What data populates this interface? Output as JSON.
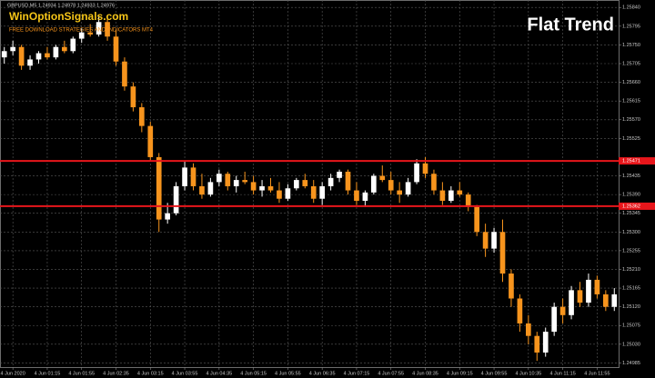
{
  "chart_data": {
    "type": "candlestick",
    "symbol_info": "GBPUSD,M5  1.24934 1.24978 1.24933 1.24976",
    "watermark": "WinOptionSignals.com",
    "watermark_subtitle": "FREE DOWNLOAD STRATEGIES AND INDICATORS MT4",
    "title": "Flat Trend",
    "up_color": "#ffffff",
    "down_color": "#f7941d",
    "level_color": "#e8161b",
    "grid": true,
    "ylim": [
      1.24975,
      1.25858
    ],
    "yticks": [
      {
        "value": 1.2584,
        "label": "1.25840"
      },
      {
        "value": 1.25795,
        "label": "1.25795"
      },
      {
        "value": 1.2575,
        "label": "1.25750"
      },
      {
        "value": 1.25705,
        "label": "1.25705"
      },
      {
        "value": 1.2566,
        "label": "1.25660"
      },
      {
        "value": 1.25615,
        "label": "1.25615"
      },
      {
        "value": 1.2557,
        "label": "1.25570"
      },
      {
        "value": 1.25525,
        "label": "1.25525"
      },
      {
        "value": 1.25435,
        "label": "1.25435"
      },
      {
        "value": 1.2539,
        "label": "1.25390"
      },
      {
        "value": 1.25345,
        "label": "1.25345"
      },
      {
        "value": 1.253,
        "label": "1.25300"
      },
      {
        "value": 1.25255,
        "label": "1.25255"
      },
      {
        "value": 1.2521,
        "label": "1.25210"
      },
      {
        "value": 1.25165,
        "label": "1.25165"
      },
      {
        "value": 1.2512,
        "label": "1.25120"
      },
      {
        "value": 1.25075,
        "label": "1.25075"
      },
      {
        "value": 1.2503,
        "label": "1.25030"
      },
      {
        "value": 1.24985,
        "label": "1.24985"
      }
    ],
    "levels": [
      1.25471,
      1.25362
    ],
    "categories": [
      null,
      "4 Jun 2020",
      null,
      null,
      null,
      "4 Jun 01:15",
      null,
      null,
      null,
      "4 Jun 01:55",
      null,
      null,
      null,
      "4 Jun 02:35",
      null,
      null,
      null,
      "4 Jun 03:15",
      null,
      null,
      null,
      "4 Jun 03:55",
      null,
      null,
      null,
      "4 Jun 04:35",
      null,
      null,
      null,
      "4 Jun 05:15",
      null,
      null,
      null,
      "4 Jun 05:55",
      null,
      null,
      null,
      "4 Jun 06:35",
      null,
      null,
      null,
      "4 Jun 07:15",
      null,
      null,
      null,
      "4 Jun 07:55",
      null,
      null,
      null,
      "4 Jun 08:35",
      null,
      null,
      null,
      "4 Jun 09:15",
      null,
      null,
      null,
      "4 Jun 09:55",
      null,
      null,
      null,
      "4 Jun 10:35",
      null,
      null,
      null,
      "4 Jun 11:15",
      null,
      null,
      null,
      "4 Jun 11:55",
      null,
      null
    ],
    "candles": [
      [
        1.2572,
        1.25745,
        1.25705,
        1.25735
      ],
      [
        1.25735,
        1.2576,
        1.25725,
        1.25745
      ],
      [
        1.25745,
        1.2575,
        1.2569,
        1.257
      ],
      [
        1.257,
        1.25725,
        1.2569,
        1.25715
      ],
      [
        1.25715,
        1.25735,
        1.25705,
        1.2573
      ],
      [
        1.2573,
        1.25745,
        1.25715,
        1.2572
      ],
      [
        1.2572,
        1.2575,
        1.25715,
        1.25745
      ],
      [
        1.25745,
        1.2576,
        1.2573,
        1.25735
      ],
      [
        1.25735,
        1.2577,
        1.2573,
        1.25765
      ],
      [
        1.25765,
        1.2579,
        1.25755,
        1.2578
      ],
      [
        1.2578,
        1.258,
        1.2577,
        1.25775
      ],
      [
        1.25775,
        1.2582,
        1.2577,
        1.25805
      ],
      [
        1.25805,
        1.25815,
        1.2576,
        1.2577
      ],
      [
        1.2577,
        1.25785,
        1.257,
        1.2571
      ],
      [
        1.2571,
        1.2572,
        1.2564,
        1.2565
      ],
      [
        1.2565,
        1.2566,
        1.2559,
        1.256
      ],
      [
        1.256,
        1.2561,
        1.2554,
        1.25555
      ],
      [
        1.25555,
        1.25565,
        1.2547,
        1.2548
      ],
      [
        1.2548,
        1.2549,
        1.253,
        1.2533
      ],
      [
        1.2533,
        1.2537,
        1.2532,
        1.25345
      ],
      [
        1.25345,
        1.2542,
        1.2534,
        1.2541
      ],
      [
        1.2541,
        1.2547,
        1.254,
        1.25455
      ],
      [
        1.25455,
        1.25465,
        1.254,
        1.2541
      ],
      [
        1.2541,
        1.2544,
        1.2538,
        1.2539
      ],
      [
        1.2539,
        1.2543,
        1.25385,
        1.2542
      ],
      [
        1.2542,
        1.2545,
        1.2541,
        1.2544
      ],
      [
        1.2544,
        1.25445,
        1.254,
        1.2541
      ],
      [
        1.2541,
        1.25435,
        1.25395,
        1.25425
      ],
      [
        1.25425,
        1.25445,
        1.25415,
        1.2542
      ],
      [
        1.2542,
        1.25435,
        1.2539,
        1.254
      ],
      [
        1.254,
        1.25425,
        1.25385,
        1.2541
      ],
      [
        1.2541,
        1.2543,
        1.25395,
        1.254
      ],
      [
        1.254,
        1.2542,
        1.2537,
        1.2538
      ],
      [
        1.2538,
        1.25415,
        1.25375,
        1.25405
      ],
      [
        1.25405,
        1.2543,
        1.254,
        1.25425
      ],
      [
        1.25425,
        1.2544,
        1.25405,
        1.2541
      ],
      [
        1.2541,
        1.25425,
        1.2537,
        1.2538
      ],
      [
        1.2538,
        1.2542,
        1.25365,
        1.2541
      ],
      [
        1.2541,
        1.2544,
        1.254,
        1.2543
      ],
      [
        1.2543,
        1.2545,
        1.2542,
        1.25445
      ],
      [
        1.25445,
        1.2545,
        1.2539,
        1.254
      ],
      [
        1.254,
        1.2542,
        1.25365,
        1.25375
      ],
      [
        1.25375,
        1.254,
        1.2536,
        1.25395
      ],
      [
        1.25395,
        1.2544,
        1.2539,
        1.25435
      ],
      [
        1.25435,
        1.2546,
        1.2542,
        1.25425
      ],
      [
        1.25425,
        1.25445,
        1.2539,
        1.254
      ],
      [
        1.254,
        1.2542,
        1.2537,
        1.2539
      ],
      [
        1.2539,
        1.2543,
        1.25385,
        1.2542
      ],
      [
        1.2542,
        1.25475,
        1.25415,
        1.25465
      ],
      [
        1.25465,
        1.2548,
        1.2543,
        1.2544
      ],
      [
        1.2544,
        1.2545,
        1.2539,
        1.254
      ],
      [
        1.254,
        1.2542,
        1.25365,
        1.25375
      ],
      [
        1.25375,
        1.2541,
        1.2537,
        1.254
      ],
      [
        1.254,
        1.2542,
        1.25385,
        1.2539
      ],
      [
        1.2539,
        1.25395,
        1.2535,
        1.2536
      ],
      [
        1.2536,
        1.25365,
        1.2529,
        1.253
      ],
      [
        1.253,
        1.2532,
        1.2524,
        1.2526
      ],
      [
        1.2526,
        1.2531,
        1.2525,
        1.253
      ],
      [
        1.253,
        1.2533,
        1.2518,
        1.252
      ],
      [
        1.252,
        1.2521,
        1.2512,
        1.2514
      ],
      [
        1.2514,
        1.2515,
        1.2506,
        1.2508
      ],
      [
        1.2508,
        1.251,
        1.2503,
        1.2505
      ],
      [
        1.2505,
        1.2506,
        1.2499,
        1.2501
      ],
      [
        1.2501,
        1.2507,
        1.25,
        1.2506
      ],
      [
        1.2506,
        1.2513,
        1.2505,
        1.2512
      ],
      [
        1.2512,
        1.2514,
        1.2508,
        1.251
      ],
      [
        1.251,
        1.2517,
        1.2509,
        1.2516
      ],
      [
        1.2516,
        1.2518,
        1.2512,
        1.2513
      ],
      [
        1.2513,
        1.252,
        1.2512,
        1.25185
      ],
      [
        1.25185,
        1.25195,
        1.2514,
        1.2515
      ],
      [
        1.2515,
        1.2516,
        1.2511,
        1.2512
      ],
      [
        1.2512,
        1.25165,
        1.2511,
        1.2515
      ]
    ]
  }
}
